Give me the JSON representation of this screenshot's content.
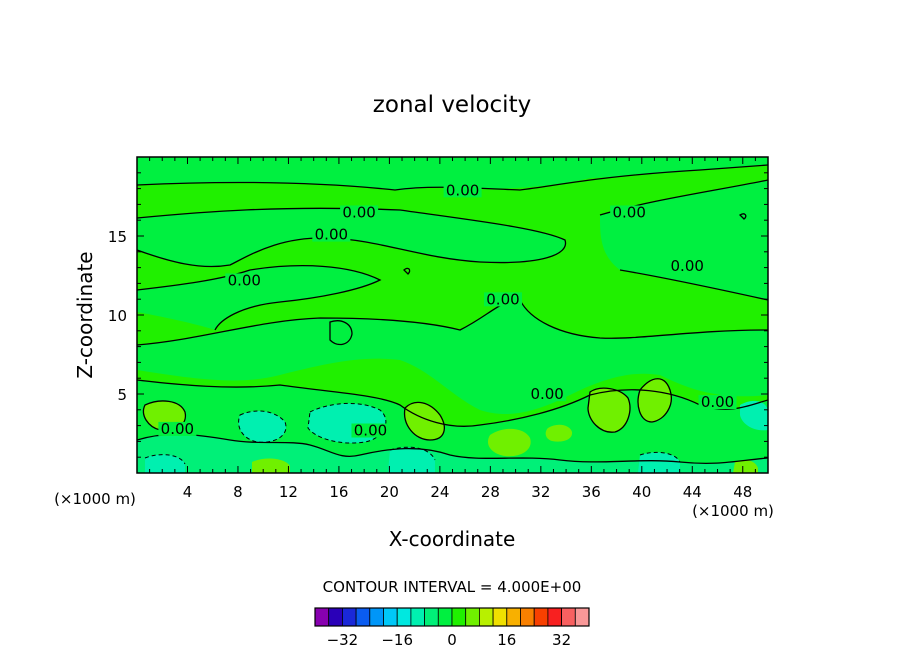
{
  "chart_data": {
    "type": "heatmap",
    "title": "zonal velocity",
    "xlabel": "X-coordinate",
    "ylabel": "Z-coordinate",
    "x_unit": "(×1000 m)",
    "xlim": [
      0,
      50
    ],
    "ylim": [
      0,
      20
    ],
    "x_ticks": [
      4,
      8,
      12,
      16,
      20,
      24,
      28,
      32,
      36,
      40,
      44,
      48
    ],
    "y_ticks": [
      5,
      10,
      15
    ],
    "contour_label": "0.00",
    "contour_interval_text": "CONTOUR INTERVAL = 4.000E+00",
    "colorbar": {
      "colors": [
        "#8800b0",
        "#2a00b8",
        "#1a28d8",
        "#0a5cf0",
        "#0096f8",
        "#00c8f8",
        "#00e8e0",
        "#00f0b0",
        "#00f078",
        "#00f040",
        "#20f000",
        "#70f000",
        "#b8f000",
        "#f0e000",
        "#f8b000",
        "#f88000",
        "#f84000",
        "#f82020",
        "#f86060",
        "#f89898"
      ],
      "tick_labels": [
        "-32",
        "-16",
        "0",
        "16",
        "32"
      ],
      "tick_values": [
        -32,
        -16,
        0,
        16,
        32
      ],
      "min": -40,
      "max": 40
    },
    "field_colors": {
      "background_band": "#00f040",
      "near_zero_positive": "#20f000",
      "weak_positive": "#70f000",
      "weak_negative": "#00f078",
      "moderate_negative": "#00f0b0"
    }
  }
}
